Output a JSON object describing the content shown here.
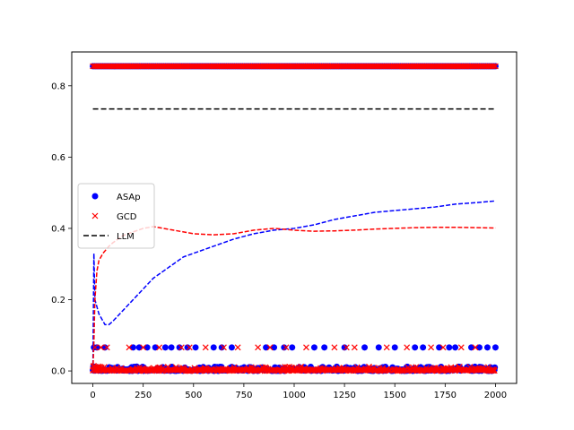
{
  "chart_data": {
    "type": "scatter",
    "xlim": [
      -105,
      2105
    ],
    "ylim": [
      -0.035,
      0.895
    ],
    "x_ticks": [
      0,
      250,
      500,
      750,
      1000,
      1250,
      1500,
      1750,
      2000
    ],
    "y_ticks": [
      0.0,
      0.2,
      0.4,
      0.6,
      0.8
    ],
    "x_tick_labels": [
      "0",
      "250",
      "500",
      "750",
      "1000",
      "1250",
      "1500",
      "1750",
      "2000"
    ],
    "y_tick_labels": [
      "0.0",
      "0.2",
      "0.4",
      "0.6",
      "0.8"
    ],
    "grid": false,
    "legend_position": "center-left",
    "legend": [
      {
        "label": "ASAp",
        "marker": "circle",
        "color": "#0000ff"
      },
      {
        "label": "GCD",
        "marker": "x",
        "color": "#ff0000"
      },
      {
        "label": "LLM",
        "marker": "dashed-line",
        "color": "#000000"
      }
    ],
    "series": [
      {
        "name": "ASAp",
        "kind": "scatter",
        "marker": "circle",
        "color": "#0000ff",
        "levels": [
          0.855,
          0.066,
          0.012,
          0.004,
          0.0
        ],
        "x_range": [
          0,
          2000
        ],
        "level_066_x": [
          5,
          20,
          60,
          200,
          230,
          270,
          310,
          360,
          390,
          430,
          470,
          510,
          600,
          640,
          690,
          860,
          900,
          950,
          990,
          1100,
          1150,
          1250,
          1350,
          1420,
          1500,
          1600,
          1640,
          1720,
          1770,
          1800,
          1880,
          1920,
          1960,
          2000
        ]
      },
      {
        "name": "GCD",
        "kind": "scatter",
        "marker": "x",
        "color": "#ff0000",
        "levels": [
          0.855,
          0.066,
          0.012,
          0.004,
          0.0
        ],
        "x_range": [
          0,
          2000
        ],
        "level_066_x": [
          10,
          40,
          70,
          180,
          250,
          330,
          440,
          480,
          560,
          650,
          720,
          820,
          880,
          960,
          1060,
          1200,
          1260,
          1300,
          1460,
          1560,
          1680,
          1740,
          1830,
          1900
        ]
      },
      {
        "name": "ASAp running mean",
        "kind": "line",
        "style": "dashed",
        "color": "#0000ff",
        "x": [
          0,
          5,
          10,
          20,
          30,
          40,
          50,
          60,
          80,
          100,
          150,
          200,
          250,
          300,
          350,
          400,
          450,
          500,
          600,
          700,
          800,
          900,
          1000,
          1100,
          1200,
          1300,
          1400,
          1500,
          1600,
          1700,
          1800,
          1900,
          2000
        ],
        "y": [
          0.0,
          0.33,
          0.2,
          0.18,
          0.16,
          0.15,
          0.14,
          0.13,
          0.13,
          0.14,
          0.17,
          0.2,
          0.23,
          0.26,
          0.28,
          0.3,
          0.32,
          0.33,
          0.35,
          0.37,
          0.385,
          0.395,
          0.4,
          0.41,
          0.425,
          0.435,
          0.445,
          0.45,
          0.455,
          0.46,
          0.468,
          0.472,
          0.477
        ]
      },
      {
        "name": "GCD running mean",
        "kind": "line",
        "style": "dashed",
        "color": "#ff0000",
        "x": [
          0,
          5,
          10,
          20,
          30,
          50,
          80,
          100,
          150,
          200,
          250,
          300,
          350,
          400,
          450,
          500,
          600,
          700,
          800,
          900,
          1000,
          1100,
          1200,
          1300,
          1400,
          1500,
          1600,
          1700,
          1800,
          1900,
          2000
        ],
        "y": [
          0.0,
          0.08,
          0.2,
          0.28,
          0.31,
          0.33,
          0.35,
          0.36,
          0.38,
          0.39,
          0.4,
          0.405,
          0.4,
          0.395,
          0.39,
          0.385,
          0.382,
          0.385,
          0.395,
          0.4,
          0.395,
          0.392,
          0.393,
          0.395,
          0.398,
          0.4,
          0.402,
          0.403,
          0.403,
          0.402,
          0.401
        ]
      },
      {
        "name": "LLM",
        "kind": "hline",
        "style": "dashed",
        "color": "#000000",
        "y": 0.735,
        "x_range": [
          0,
          2000
        ]
      }
    ]
  }
}
